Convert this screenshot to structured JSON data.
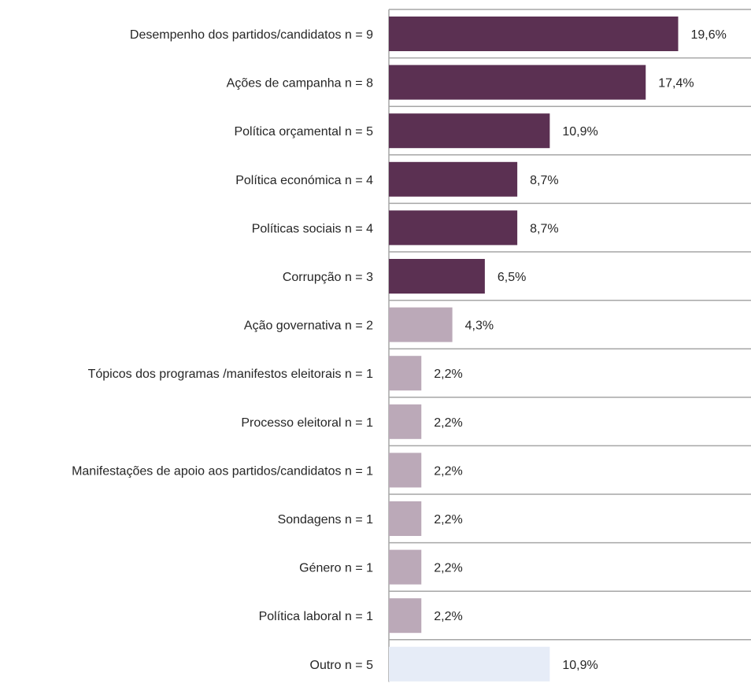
{
  "chart_data": {
    "type": "bar",
    "orientation": "horizontal",
    "title": "",
    "xlabel": "",
    "ylabel": "",
    "xlim": [
      0,
      21.5
    ],
    "grid": false,
    "legend": "none",
    "categories": [
      "Desempenho dos partidos/candidatos n = 9",
      "Ações de campanha n = 8",
      "Política orçamental n = 5",
      "Política económica n = 4",
      "Políticas sociais n = 4",
      "Corrupção n = 3",
      "Ação governativa n = 2",
      "Tópicos dos programas /manifestos eleitorais n = 1",
      "Processo eleitoral n = 1",
      "Manifestações de apoio aos partidos/candidatos n = 1",
      "Sondagens n = 1",
      "Género n = 1",
      "Política laboral n = 1",
      "Outro n = 5"
    ],
    "values": [
      19.6,
      17.4,
      10.9,
      8.7,
      8.7,
      6.5,
      4.3,
      2.2,
      2.2,
      2.2,
      2.2,
      2.2,
      2.2,
      10.9
    ],
    "value_labels": [
      "19,6%",
      "17,4%",
      "10,9%",
      "8,7%",
      "8,7%",
      "6,5%",
      "4,3%",
      "2,2%",
      "2,2%",
      "2,2%",
      "2,2%",
      "2,2%",
      "2,2%",
      "10,9%"
    ],
    "bar_colors": [
      "#5b3052",
      "#5b3052",
      "#5b3052",
      "#5b3052",
      "#5b3052",
      "#5b3052",
      "#bba9b8",
      "#bba9b8",
      "#bba9b8",
      "#bba9b8",
      "#bba9b8",
      "#bba9b8",
      "#bba9b8",
      "#e6ecf7"
    ],
    "separator_color": "#a6a6a6"
  }
}
